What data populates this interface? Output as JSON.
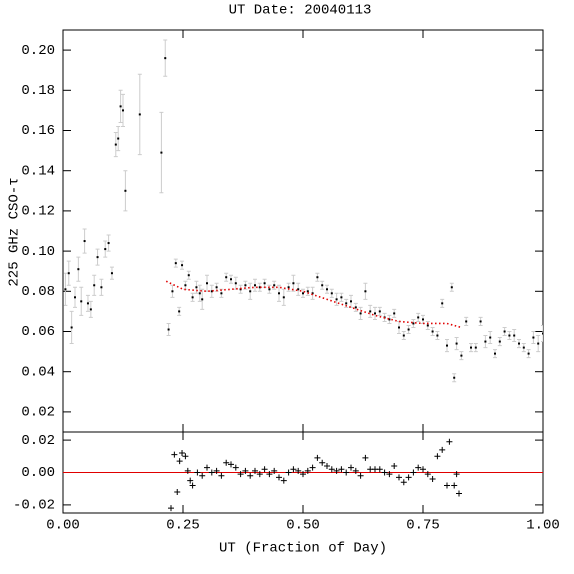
{
  "chart_data": [
    {
      "type": "scatter",
      "title": "UT Date: 20040113",
      "y_label": "225 GHz CSO-τ",
      "xlim": [
        0,
        1
      ],
      "xticks": [
        0,
        0.25,
        0.5,
        0.75,
        1
      ],
      "ylim": [
        0.01,
        0.21
      ],
      "yticks": [
        {
          "value": 0.02,
          "label": "0.02"
        },
        {
          "value": 0.04,
          "label": "0.04"
        },
        {
          "value": 0.06,
          "label": "0.06"
        },
        {
          "value": 0.08,
          "label": "0.08"
        },
        {
          "value": 0.1,
          "label": "0.10"
        },
        {
          "value": 0.12,
          "label": "0.12"
        },
        {
          "value": 0.14,
          "label": "0.14"
        },
        {
          "value": 0.16,
          "label": "0.16"
        },
        {
          "value": 0.18,
          "label": "0.18"
        },
        {
          "value": 0.2,
          "label": "0.20"
        }
      ],
      "series": [
        {
          "color": "#000000",
          "error_color": "#cccccc",
          "x": [
            0.005,
            0.012,
            0.018,
            0.025,
            0.032,
            0.038,
            0.045,
            0.052,
            0.058,
            0.065,
            0.072,
            0.08,
            0.088,
            0.095,
            0.102,
            0.11,
            0.115,
            0.12,
            0.125,
            0.13,
            0.16,
            0.205,
            0.213,
            0.22,
            0.228,
            0.235,
            0.242,
            0.248,
            0.255,
            0.262,
            0.27,
            0.278,
            0.285,
            0.29,
            0.3,
            0.31,
            0.32,
            0.33,
            0.34,
            0.35,
            0.36,
            0.37,
            0.38,
            0.39,
            0.4,
            0.41,
            0.42,
            0.43,
            0.44,
            0.45,
            0.46,
            0.47,
            0.48,
            0.49,
            0.5,
            0.51,
            0.52,
            0.53,
            0.54,
            0.55,
            0.56,
            0.57,
            0.58,
            0.59,
            0.6,
            0.61,
            0.62,
            0.63,
            0.64,
            0.65,
            0.66,
            0.67,
            0.68,
            0.69,
            0.7,
            0.71,
            0.72,
            0.73,
            0.74,
            0.75,
            0.76,
            0.77,
            0.78,
            0.79,
            0.8,
            0.81,
            0.815,
            0.82,
            0.83,
            0.84,
            0.85,
            0.86,
            0.87,
            0.88,
            0.89,
            0.9,
            0.91,
            0.92,
            0.93,
            0.94,
            0.95,
            0.96,
            0.97,
            0.98,
            0.99,
            1.0
          ],
          "values": [
            0.081,
            0.089,
            0.062,
            0.077,
            0.091,
            0.075,
            0.105,
            0.074,
            0.071,
            0.083,
            0.097,
            0.082,
            0.101,
            0.104,
            0.089,
            0.153,
            0.156,
            0.172,
            0.17,
            0.13,
            0.168,
            0.149,
            0.196,
            0.061,
            0.08,
            0.094,
            0.07,
            0.093,
            0.083,
            0.088,
            0.077,
            0.082,
            0.079,
            0.076,
            0.084,
            0.08,
            0.082,
            0.079,
            0.087,
            0.086,
            0.084,
            0.081,
            0.083,
            0.08,
            0.083,
            0.082,
            0.084,
            0.081,
            0.083,
            0.079,
            0.077,
            0.082,
            0.084,
            0.081,
            0.079,
            0.08,
            0.079,
            0.087,
            0.083,
            0.081,
            0.079,
            0.076,
            0.077,
            0.074,
            0.075,
            0.072,
            0.069,
            0.08,
            0.07,
            0.069,
            0.07,
            0.067,
            0.066,
            0.069,
            0.062,
            0.058,
            0.061,
            0.064,
            0.067,
            0.066,
            0.063,
            0.06,
            0.058,
            0.074,
            0.053,
            0.082,
            0.037,
            0.054,
            0.048,
            0.065,
            0.052,
            0.052,
            0.065,
            0.055,
            0.057,
            0.049,
            0.055,
            0.06,
            0.058,
            0.058,
            0.054,
            0.052,
            0.049,
            0.057,
            0.054,
            0.059
          ],
          "errors": [
            0.008,
            0.006,
            0.008,
            0.005,
            0.006,
            0.007,
            0.006,
            0.004,
            0.004,
            0.005,
            0.004,
            0.004,
            0.004,
            0.004,
            0.003,
            0.006,
            0.006,
            0.008,
            0.008,
            0.01,
            0.02,
            0.02,
            0.009,
            0.003,
            0.003,
            0.002,
            0.002,
            0.002,
            0.002,
            0.002,
            0.002,
            0.003,
            0.004,
            0.005,
            0.004,
            0.003,
            0.002,
            0.002,
            0.002,
            0.002,
            0.003,
            0.002,
            0.002,
            0.004,
            0.003,
            0.002,
            0.002,
            0.002,
            0.002,
            0.004,
            0.004,
            0.002,
            0.004,
            0.003,
            0.002,
            0.002,
            0.003,
            0.002,
            0.002,
            0.002,
            0.002,
            0.003,
            0.002,
            0.002,
            0.003,
            0.002,
            0.003,
            0.004,
            0.003,
            0.003,
            0.002,
            0.002,
            0.002,
            0.002,
            0.003,
            0.002,
            0.002,
            0.002,
            0.002,
            0.002,
            0.002,
            0.002,
            0.002,
            0.002,
            0.003,
            0.002,
            0.002,
            0.003,
            0.002,
            0.002,
            0.002,
            0.002,
            0.002,
            0.003,
            0.003,
            0.002,
            0.002,
            0.002,
            0.002,
            0.003,
            0.002,
            0.002,
            0.002,
            0.003,
            0.004,
            0.004
          ]
        },
        {
          "color": "#e00000",
          "line_style": "dotted",
          "x": [
            0.215,
            0.25,
            0.3,
            0.35,
            0.4,
            0.45,
            0.5,
            0.55,
            0.6,
            0.65,
            0.7,
            0.75,
            0.8,
            0.83
          ],
          "values": [
            0.085,
            0.081,
            0.08,
            0.081,
            0.082,
            0.082,
            0.08,
            0.076,
            0.072,
            0.068,
            0.065,
            0.064,
            0.064,
            0.062
          ]
        }
      ]
    },
    {
      "type": "scatter",
      "x_label": "UT (Fraction of Day)",
      "marker": "plus",
      "zero_line_color": "#e00000",
      "xlim": [
        0,
        1
      ],
      "xticks": [
        {
          "value": 0,
          "label": "0.00"
        },
        {
          "value": 0.25,
          "label": "0.25"
        },
        {
          "value": 0.5,
          "label": "0.50"
        },
        {
          "value": 0.75,
          "label": "0.75"
        },
        {
          "value": 1,
          "label": "1.00"
        }
      ],
      "ylim": [
        -0.025,
        0.025
      ],
      "yticks": [
        {
          "value": -0.02,
          "label": "-0.02"
        },
        {
          "value": 0,
          "label": "0.00"
        },
        {
          "value": 0.02,
          "label": "0.02"
        }
      ],
      "series": [
        {
          "color": "#000000",
          "x": [
            0.225,
            0.232,
            0.238,
            0.243,
            0.248,
            0.255,
            0.26,
            0.265,
            0.27,
            0.28,
            0.29,
            0.3,
            0.31,
            0.32,
            0.33,
            0.34,
            0.35,
            0.36,
            0.37,
            0.38,
            0.39,
            0.4,
            0.41,
            0.42,
            0.43,
            0.44,
            0.45,
            0.46,
            0.47,
            0.48,
            0.49,
            0.5,
            0.51,
            0.52,
            0.53,
            0.54,
            0.55,
            0.56,
            0.57,
            0.58,
            0.59,
            0.6,
            0.61,
            0.62,
            0.63,
            0.64,
            0.65,
            0.66,
            0.67,
            0.68,
            0.69,
            0.7,
            0.71,
            0.72,
            0.73,
            0.74,
            0.75,
            0.76,
            0.77,
            0.78,
            0.79,
            0.8,
            0.805,
            0.815,
            0.82,
            0.825
          ],
          "values": [
            -0.022,
            0.011,
            -0.012,
            0.007,
            0.012,
            0.01,
            0.001,
            -0.005,
            -0.008,
            0.0,
            -0.002,
            0.003,
            0.0,
            0.001,
            -0.002,
            0.006,
            0.005,
            0.003,
            -0.001,
            0.001,
            -0.002,
            0.001,
            -0.001,
            0.002,
            -0.001,
            0.001,
            -0.003,
            -0.005,
            0.0,
            0.002,
            0.001,
            -0.001,
            0.001,
            0.003,
            0.009,
            0.006,
            0.004,
            0.002,
            0.001,
            0.002,
            0.0,
            0.003,
            0.001,
            -0.002,
            0.009,
            0.002,
            0.002,
            0.002,
            0.0,
            -0.001,
            0.004,
            -0.003,
            -0.006,
            -0.003,
            0.0,
            0.003,
            0.002,
            -0.001,
            -0.004,
            0.01,
            0.014,
            -0.008,
            0.019,
            -0.008,
            -0.001,
            -0.013
          ]
        }
      ]
    }
  ]
}
